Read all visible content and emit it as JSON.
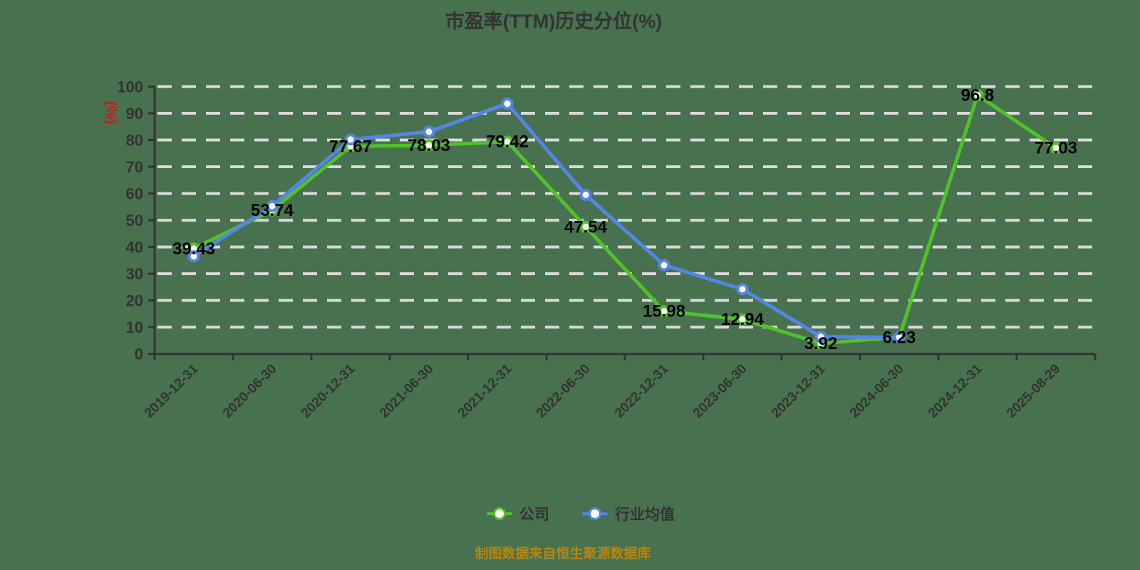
{
  "title": "市盈率(TTM)历史分位(%)",
  "footer": "制图数据来自恒生聚源数据库",
  "colors": {
    "background": "#48714f",
    "company_green": "#50c228",
    "industry_blue": "#5586e5",
    "grid_line": "#d9d9d9",
    "axis_line": "#333333",
    "tick_text": "#333333",
    "data_label": "#000000",
    "y_axis_name": "#e21212",
    "footer_text": "#b8860b",
    "marker_fill": "#ffffff"
  },
  "legend": {
    "items": [
      {
        "label": "公司",
        "color": "#50c228"
      },
      {
        "label": "行业均值",
        "color": "#5586e5"
      }
    ]
  },
  "y_axis": {
    "name": "(%)",
    "min": 0,
    "max": 100,
    "interval": 10,
    "ticks": [
      0,
      10,
      20,
      30,
      40,
      50,
      60,
      70,
      80,
      90,
      100
    ]
  },
  "chart_data": {
    "type": "line",
    "title": "市盈率(TTM)历史分位(%)",
    "xlabel": "",
    "ylabel": "(%)",
    "ylim": [
      0,
      100
    ],
    "grid": "horizontal dashed",
    "legend_position": "bottom",
    "categories": [
      "2019-12-31",
      "2020-06-30",
      "2020-12-31",
      "2021-06-30",
      "2021-12-31",
      "2022-06-30",
      "2022-12-31",
      "2023-06-30",
      "2023-12-31",
      "2024-06-30",
      "2024-12-31",
      "2025-08-29"
    ],
    "series": [
      {
        "name": "公司",
        "color": "#50c228",
        "show_value_labels": true,
        "values": [
          39.43,
          53.74,
          77.67,
          78.03,
          79.42,
          47.54,
          15.98,
          12.94,
          3.92,
          6.23,
          96.8,
          77.03
        ]
      },
      {
        "name": "行业均值",
        "color": "#5586e5",
        "show_value_labels": false,
        "values": [
          36.5,
          55.3,
          80.2,
          83.1,
          93.6,
          59.5,
          33.2,
          24.2,
          6.4,
          6.2,
          null,
          null
        ]
      }
    ]
  }
}
